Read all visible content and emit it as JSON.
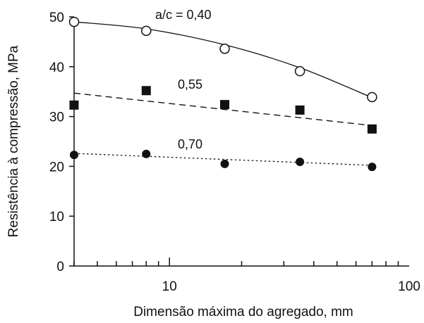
{
  "chart_data": {
    "type": "scatter",
    "title": "",
    "xlabel": "Dimensão máxima do agregado, mm",
    "ylabel": "Resistência à compressão, MPa",
    "xscale": "log",
    "xlim": [
      4,
      100
    ],
    "ylim": [
      0,
      50
    ],
    "xticks": [
      10,
      100
    ],
    "xtick_labels": [
      "10",
      "100"
    ],
    "yticks": [
      0,
      10,
      20,
      30,
      40,
      50
    ],
    "ytick_labels": [
      "0",
      "10",
      "20",
      "30",
      "40",
      "50"
    ],
    "grid": false,
    "legend": "none (inline series labels)",
    "series": [
      {
        "name": "a/c = 0,40",
        "marker": "open-circle",
        "line": "solid",
        "x": [
          4,
          8,
          17,
          35,
          70
        ],
        "y": [
          49,
          47.2,
          43.6,
          39.1,
          33.9
        ],
        "fit_x": [
          4,
          8,
          17,
          35,
          70
        ],
        "fit_y": [
          49,
          47.6,
          44.4,
          39.8,
          33.8
        ]
      },
      {
        "name": "0,55",
        "marker": "filled-square",
        "line": "dashed",
        "x": [
          4,
          8,
          17,
          35,
          70
        ],
        "y": [
          32.3,
          35.2,
          32.4,
          31.3,
          27.5
        ],
        "fit_x": [
          4,
          70
        ],
        "fit_y": [
          34.7,
          28.2
        ]
      },
      {
        "name": "0,70",
        "marker": "filled-circle",
        "line": "dotted",
        "x": [
          4,
          8,
          17,
          35,
          70
        ],
        "y": [
          22.3,
          22.5,
          20.5,
          20.9,
          19.9
        ],
        "fit_x": [
          4,
          70
        ],
        "fit_y": [
          22.6,
          20.2
        ]
      }
    ]
  }
}
